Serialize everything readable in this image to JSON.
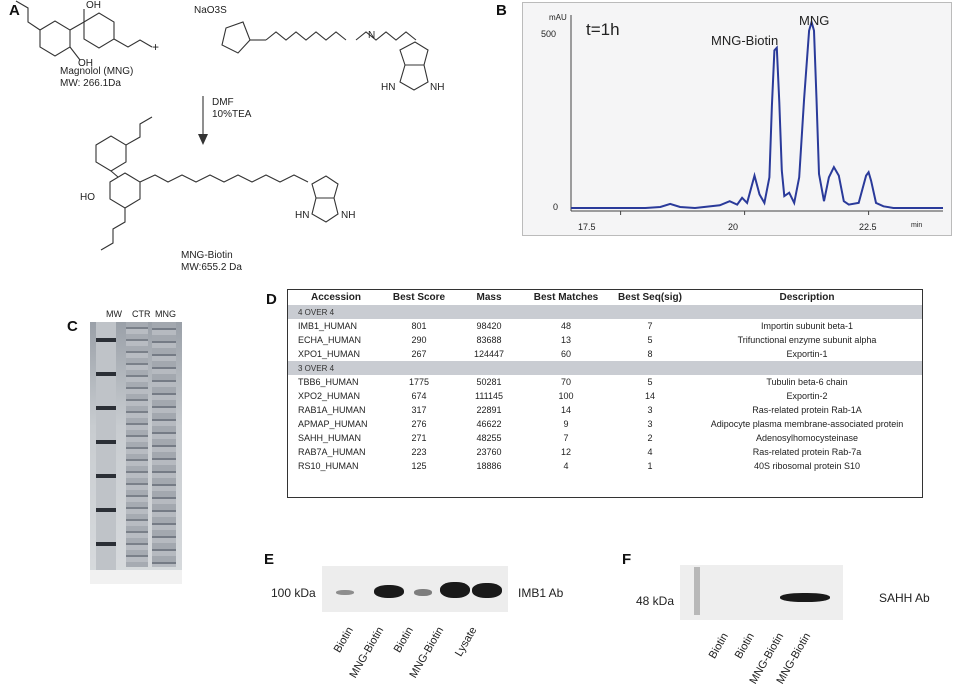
{
  "panels": {
    "a": "A",
    "b": "B",
    "c": "C",
    "d": "D",
    "e": "E",
    "f": "F"
  },
  "panelA": {
    "reagent_label": "NaO3S",
    "plus": "+",
    "compound1_name": "Magnolol (MNG)",
    "compound1_mw": "MW: 266.1Da",
    "solvent": "DMF",
    "base": "10%TEA",
    "product_name": "MNG-Biotin",
    "product_mw": "MW:655.2 Da",
    "atoms": {
      "ho": "HO",
      "oh": "OH",
      "o": "O",
      "n": "N",
      "s": "S",
      "h": "H",
      "nh": "NH",
      "hn": "HN"
    }
  },
  "panelB": {
    "unit": "mAU",
    "y_ticks": [
      "500",
      "0"
    ],
    "time_label": "t=1h",
    "peak_labels": [
      "MNG-Biotin",
      "MNG"
    ],
    "x_ticks": [
      "17.5",
      "20",
      "22.5"
    ],
    "x_unit": "min"
  },
  "chart_data": {
    "type": "line",
    "title": "t=1h",
    "xlabel": "min",
    "ylabel": "mAU",
    "xlim": [
      16.5,
      24.0
    ],
    "ylim": [
      0,
      560
    ],
    "grid": false,
    "annotations": [
      {
        "text": "MNG-Biotin",
        "x": 20.65
      },
      {
        "text": "MNG",
        "x": 21.4
      }
    ],
    "series": [
      {
        "x": [
          16.5,
          17.0,
          17.5,
          18.0,
          18.3,
          18.5,
          18.7,
          19.0,
          19.5,
          19.7,
          19.85,
          19.95,
          20.05,
          20.2,
          20.3,
          20.4,
          20.5,
          20.55,
          20.6,
          20.65,
          20.7,
          20.75,
          20.8,
          20.9,
          21.0,
          21.1,
          21.2,
          21.3,
          21.35,
          21.4,
          21.45,
          21.5,
          21.6,
          21.7,
          21.8,
          21.9,
          22.0,
          22.1,
          22.3,
          22.45,
          22.5,
          22.55,
          22.65,
          22.8,
          23.0,
          23.5,
          24.0
        ],
        "y": [
          0,
          0,
          0,
          0,
          3,
          12,
          3,
          0,
          8,
          20,
          10,
          30,
          15,
          95,
          40,
          15,
          90,
          300,
          462,
          470,
          310,
          110,
          35,
          45,
          15,
          90,
          320,
          520,
          545,
          520,
          320,
          100,
          20,
          90,
          120,
          95,
          20,
          10,
          15,
          95,
          105,
          80,
          15,
          5,
          0,
          0,
          0
        ]
      }
    ]
  },
  "panelC": {
    "lanes": [
      "MW",
      "CTR",
      "MNG"
    ]
  },
  "panelD": {
    "headers": [
      "Accession",
      "Best Score",
      "Mass",
      "Best Matches",
      "Best Seq(sig)",
      "Description"
    ],
    "groups": [
      {
        "label": "4 OVER 4",
        "rows": [
          [
            "IMB1_HUMAN",
            "801",
            "98420",
            "48",
            "7",
            "Importin subunit beta-1"
          ],
          [
            "ECHA_HUMAN",
            "290",
            "83688",
            "13",
            "5",
            "Trifunctional enzyme subunit alpha"
          ],
          [
            "XPO1_HUMAN",
            "267",
            "124447",
            "60",
            "8",
            "Exportin-1"
          ]
        ]
      },
      {
        "label": "3 OVER 4",
        "rows": [
          [
            "TBB6_HUMAN",
            "1775",
            "50281",
            "70",
            "5",
            "Tubulin beta-6 chain"
          ],
          [
            "XPO2_HUMAN",
            "674",
            "111145",
            "100",
            "14",
            "Exportin-2"
          ],
          [
            "RAB1A_HUMAN",
            "317",
            "22891",
            "14",
            "3",
            "Ras-related protein Rab-1A"
          ],
          [
            "APMAP_HUMAN",
            "276",
            "46622",
            "9",
            "3",
            "Adipocyte plasma membrane-associated protein"
          ],
          [
            "SAHH_HUMAN",
            "271",
            "48255",
            "7",
            "2",
            "Adenosylhomocysteinase"
          ],
          [
            "RAB7A_HUMAN",
            "223",
            "23760",
            "12",
            "4",
            "Ras-related protein Rab-7a"
          ],
          [
            "RS10_HUMAN",
            "125",
            "18886",
            "4",
            "1",
            "40S ribosomal protein S10"
          ]
        ]
      }
    ]
  },
  "panelE": {
    "marker": "100 kDa",
    "antibody": "IMB1 Ab",
    "lanes": [
      "Biotin",
      "MNG-Biotin",
      "Biotin",
      "MNG-Biotin",
      "Lysate"
    ]
  },
  "panelF": {
    "marker": "48 kDa",
    "antibody": "SAHH Ab",
    "lanes": [
      "Biotin",
      "Biotin",
      "MNG-Biotin",
      "MNG-Biotin"
    ]
  }
}
